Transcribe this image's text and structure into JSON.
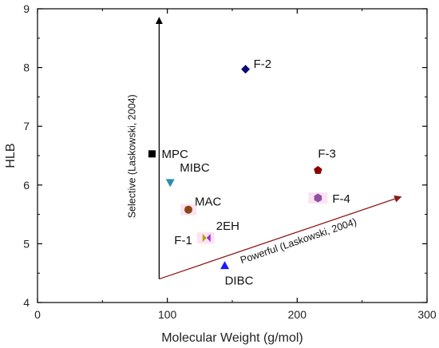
{
  "chart_data": {
    "type": "scatter",
    "xlabel": "Molecular Weight (g/mol)",
    "ylabel": "HLB",
    "xlim": [
      0,
      300
    ],
    "ylim": [
      4,
      9
    ],
    "xticks": [
      "0",
      "100",
      "200",
      "300"
    ],
    "yticks": [
      "4",
      "5",
      "6",
      "7",
      "8",
      "9"
    ],
    "grid": false,
    "points": [
      {
        "label": "MPC",
        "x": 88.2,
        "y": 6.53,
        "marker": "square",
        "color": "#000000"
      },
      {
        "label": "F-2",
        "x": 160.2,
        "y": 7.97,
        "marker": "diamond",
        "color": "#0a0a7a"
      },
      {
        "label": "MIBC",
        "x": 102.2,
        "y": 6.04,
        "marker": "triangle-down",
        "color": "#2a8fa8"
      },
      {
        "label": "MAC",
        "x": 116.2,
        "y": 5.58,
        "marker": "circle",
        "color": "#8b4513"
      },
      {
        "label": "2EH",
        "x": 130.2,
        "y": 5.1,
        "marker": "bowtie",
        "color": "#b8a000"
      },
      {
        "label": "F-1",
        "x": 130.2,
        "y": 5.1,
        "marker": "none",
        "color": "#9b30c8"
      },
      {
        "label": "DIBC",
        "x": 144.2,
        "y": 4.63,
        "marker": "triangle-up",
        "color": "#1a1aff"
      },
      {
        "label": "F-3",
        "x": 216.0,
        "y": 6.25,
        "marker": "pentagon",
        "color": "#8b0000"
      },
      {
        "label": "F-4",
        "x": 216.0,
        "y": 5.78,
        "marker": "hexagon",
        "color": "#9050a0"
      }
    ],
    "annotations": [
      {
        "text": "Selective (Laskowski, 2004)",
        "from": [
          90,
          4.4
        ],
        "to": [
          90,
          8.85
        ],
        "color": "#000000"
      },
      {
        "text": "Powerful (Laskowski, 2004)",
        "from": [
          90,
          4.4
        ],
        "to": [
          280,
          5.8
        ],
        "color": "#8b1a1a"
      }
    ]
  }
}
